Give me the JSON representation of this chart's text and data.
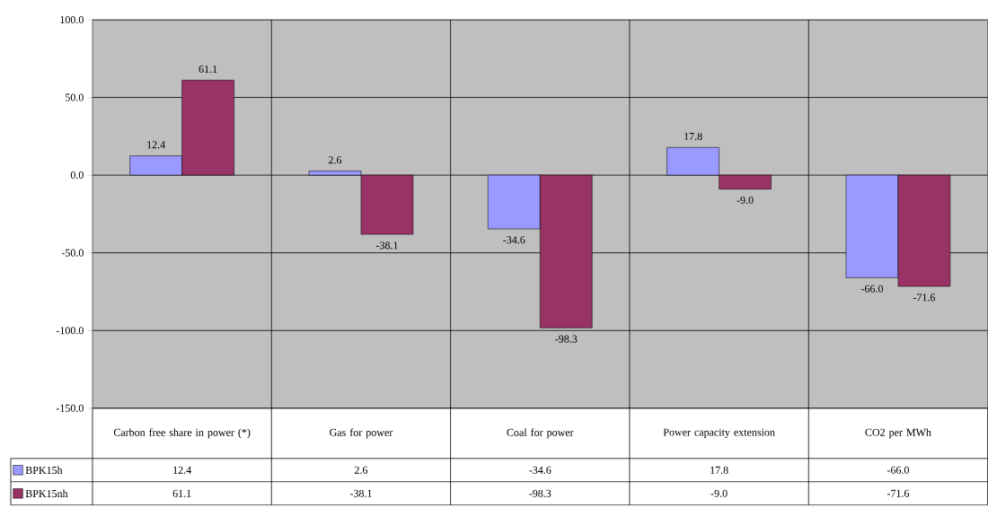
{
  "chart_data": {
    "type": "bar",
    "categories": [
      "Carbon free share in power (*)",
      "Gas for power",
      "Coal for power",
      "Power capacity extension",
      "CO2 per MWh"
    ],
    "series": [
      {
        "name": "BPK15h",
        "color": "#9999ff",
        "values": [
          12.4,
          2.6,
          -34.6,
          17.8,
          -66.0
        ],
        "value_labels": [
          "12.4",
          "2.6",
          "-34.6",
          "17.8",
          "-66.0"
        ]
      },
      {
        "name": "BPK15nh",
        "color": "#993366",
        "values": [
          61.1,
          -38.1,
          -98.3,
          -9.0,
          -71.6
        ],
        "value_labels": [
          "61.1",
          "-38.1",
          "-98.3",
          "-9.0",
          "-71.6"
        ]
      }
    ],
    "ylim": [
      -150,
      100
    ],
    "yticks": [
      {
        "value": -150,
        "label": "-150.0"
      },
      {
        "value": -100,
        "label": "-100.0"
      },
      {
        "value": -50,
        "label": "-50.0"
      },
      {
        "value": 0,
        "label": "0.0"
      },
      {
        "value": 50,
        "label": "50.0"
      },
      {
        "value": 100,
        "label": "100.0"
      }
    ],
    "grid": "y",
    "legend": "bottom"
  }
}
